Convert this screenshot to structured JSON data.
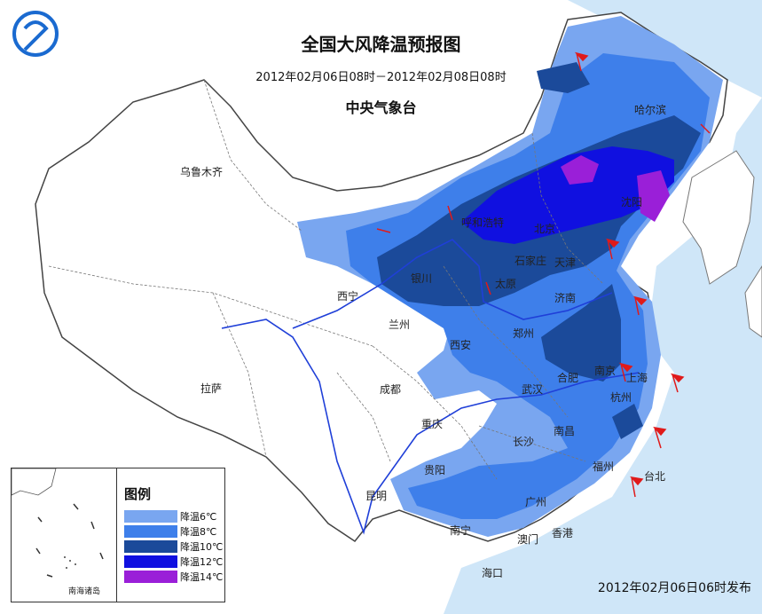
{
  "header": {
    "title": "全国大风降温预报图",
    "period": "2012年02月06日08时－2012年02月08日08时",
    "agency": "中央气象台"
  },
  "issued": "2012年02月06日06时发布",
  "legend": {
    "title": "图例",
    "items": [
      {
        "label": "降温6℃",
        "color": "#79a6f0"
      },
      {
        "label": "降温8℃",
        "color": "#3e7fea"
      },
      {
        "label": "降温10℃",
        "color": "#1b4a9a"
      },
      {
        "label": "降温12℃",
        "color": "#1010e0"
      },
      {
        "label": "降温14℃",
        "color": "#9a1fd8"
      }
    ],
    "inset_label": "南海诸岛"
  },
  "colors": {
    "sea": "#cfe6f8",
    "land": "#ffffff",
    "border": "#555555",
    "river": "#1f3fd8",
    "wind_flag": "#e01a1a"
  },
  "cities": [
    {
      "name": "哈尔滨"
    },
    {
      "name": "乌鲁木齐"
    },
    {
      "name": "呼和浩特"
    },
    {
      "name": "北京"
    },
    {
      "name": "沈阳"
    },
    {
      "name": "石家庄"
    },
    {
      "name": "天津"
    },
    {
      "name": "银川"
    },
    {
      "name": "太原"
    },
    {
      "name": "西宁"
    },
    {
      "name": "济南"
    },
    {
      "name": "兰州"
    },
    {
      "name": "郑州"
    },
    {
      "name": "西安"
    },
    {
      "name": "南京"
    },
    {
      "name": "上海"
    },
    {
      "name": "合肥"
    },
    {
      "name": "拉萨"
    },
    {
      "name": "成都"
    },
    {
      "name": "武汉"
    },
    {
      "name": "杭州"
    },
    {
      "name": "重庆"
    },
    {
      "name": "长沙"
    },
    {
      "name": "南昌"
    },
    {
      "name": "福州"
    },
    {
      "name": "台北"
    },
    {
      "name": "贵阳"
    },
    {
      "name": "昆明"
    },
    {
      "name": "广州"
    },
    {
      "name": "南宁"
    },
    {
      "name": "澳门"
    },
    {
      "name": "香港"
    },
    {
      "name": "海口"
    }
  ]
}
